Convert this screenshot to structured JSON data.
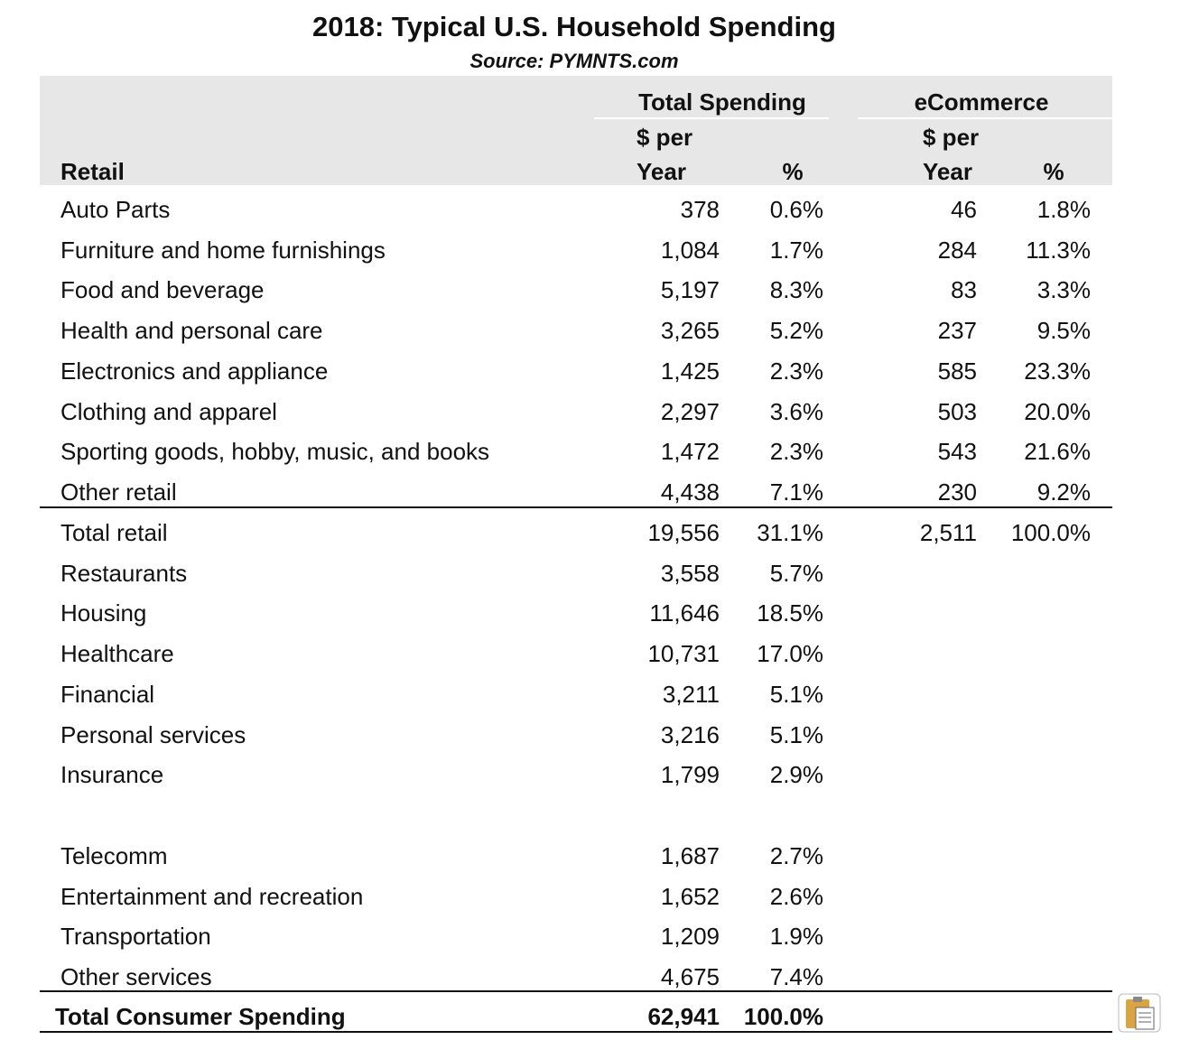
{
  "title": "2018: Typical U.S. Household Spending",
  "source": "Source: PYMNTS.com",
  "header": {
    "row_label": "Retail",
    "groups": [
      {
        "name": "Total Spending",
        "columns": [
          "$ per Year",
          "%"
        ]
      },
      {
        "name": "eCommerce",
        "columns": [
          "$ per Year",
          "%"
        ]
      }
    ]
  },
  "sections": [
    [
      {
        "label": "Auto Parts",
        "values": [
          "378",
          "0.6%",
          "46",
          "1.8%"
        ]
      },
      {
        "label": "Furniture and home furnishings",
        "values": [
          "1,084",
          "1.7%",
          "284",
          "11.3%"
        ]
      },
      {
        "label": "Food and beverage",
        "values": [
          "5,197",
          "8.3%",
          "83",
          "3.3%"
        ]
      },
      {
        "label": "Health and personal care",
        "values": [
          "3,265",
          "5.2%",
          "237",
          "9.5%"
        ]
      },
      {
        "label": "Electronics and appliance",
        "values": [
          "1,425",
          "2.3%",
          "585",
          "23.3%"
        ]
      },
      {
        "label": "Clothing and apparel",
        "values": [
          "2,297",
          "3.6%",
          "503",
          "20.0%"
        ]
      },
      {
        "label": "Sporting goods, hobby, music, and books",
        "values": [
          "1,472",
          "2.3%",
          "543",
          "21.6%"
        ]
      },
      {
        "label": "Other retail",
        "values": [
          "4,438",
          "7.1%",
          "230",
          "9.2%"
        ]
      }
    ],
    [
      {
        "label": "Total retail",
        "values": [
          "19,556",
          "31.1%",
          "2,511",
          "100.0%"
        ]
      },
      {
        "label": "Restaurants",
        "values": [
          "3,558",
          "5.7%"
        ]
      },
      {
        "label": "Housing",
        "values": [
          "11,646",
          "18.5%"
        ]
      },
      {
        "label": "Healthcare",
        "values": [
          "10,731",
          "17.0%"
        ]
      },
      {
        "label": "Financial",
        "values": [
          "3,211",
          "5.1%"
        ]
      },
      {
        "label": "Personal services",
        "values": [
          "3,216",
          "5.1%"
        ]
      },
      {
        "label": "Insurance",
        "values": [
          "1,799",
          "2.9%"
        ]
      }
    ],
    [
      {
        "label": "Telecomm",
        "values": [
          "1,687",
          "2.7%"
        ]
      },
      {
        "label": "Entertainment and recreation",
        "values": [
          "1,652",
          "2.6%"
        ]
      },
      {
        "label": "Transportation",
        "values": [
          "1,209",
          "1.9%"
        ]
      },
      {
        "label": "Other services",
        "values": [
          "4,675",
          "7.4%"
        ]
      }
    ],
    [
      {
        "label": "Total Consumer Spending",
        "values": [
          "62,941",
          "100.0%"
        ]
      }
    ]
  ]
}
